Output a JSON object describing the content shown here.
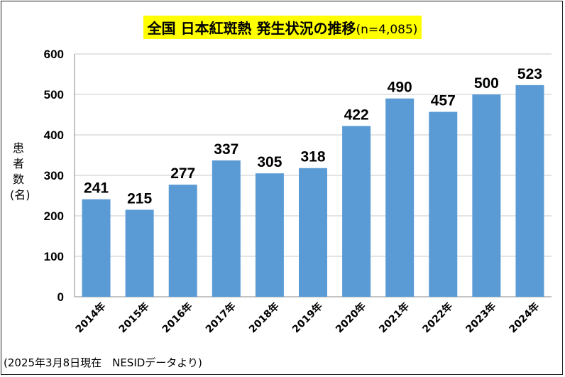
{
  "title": {
    "main": "全国 日本紅斑熱 発生状況の推移",
    "n": "(n=4,085)"
  },
  "footnote": "(2025年3月8日現在　NESIDデータより)",
  "colors": {
    "bar": "#5b9bd5",
    "title_bg": "#ffff00",
    "axis": "#888888",
    "grid": "#c8c8c8"
  },
  "chart_data": {
    "type": "bar",
    "categories": [
      "2014年",
      "2015年",
      "2016年",
      "2017年",
      "2018年",
      "2019年",
      "2020年",
      "2021年",
      "2022年",
      "2023年",
      "2024年"
    ],
    "values": [
      241,
      215,
      277,
      337,
      305,
      318,
      422,
      490,
      457,
      500,
      523
    ],
    "ylabel": "患者数(名)",
    "ylim": [
      0,
      600
    ],
    "yticks": [
      0,
      100,
      200,
      300,
      400,
      500,
      600
    ],
    "grid": true,
    "legend": "none"
  }
}
